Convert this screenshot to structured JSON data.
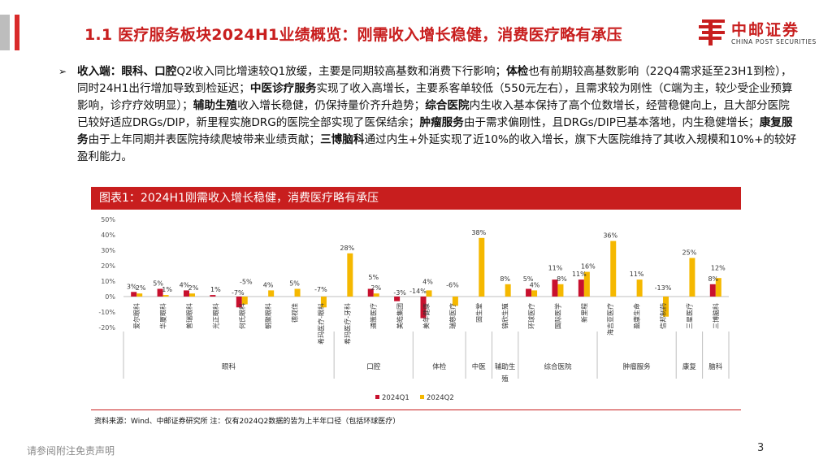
{
  "header": {
    "title": "1.1 医疗服务板块2024H1业绩概览：刚需收入增长稳健，消费医疗略有承压",
    "logo_cn": "中邮证券",
    "logo_en": "CHINA POST SECURITIES"
  },
  "body": {
    "bullet": "➢",
    "segments": [
      {
        "bold": true,
        "text": "收入端："
      },
      {
        "bold": true,
        "text": "眼科、口腔"
      },
      {
        "bold": false,
        "text": "Q2收入同比增速较Q1放缓，主要是同期较高基数和消费下行影响；"
      },
      {
        "bold": true,
        "text": "体检"
      },
      {
        "bold": false,
        "text": "也有前期较高基数影响（22Q4需求延至23H1到检），同时24H1出行增加导致到检延迟；"
      },
      {
        "bold": true,
        "text": "中医诊疗服务"
      },
      {
        "bold": false,
        "text": "实现了收入高增长，主要系客单较低（550元左右），且需求较为刚性（C端为主，较少受企业预算影响，诊疗疗效明显）；"
      },
      {
        "bold": true,
        "text": "辅助生殖"
      },
      {
        "bold": false,
        "text": "收入增长稳健，仍保持量价齐升趋势；"
      },
      {
        "bold": true,
        "text": "综合医院"
      },
      {
        "bold": false,
        "text": "内生收入基本保持了高个位数增长，经营稳健向上，且大部分医院已较好适应DRGs/DIP，新里程实施DRG的医院全部实现了医保结余；"
      },
      {
        "bold": true,
        "text": "肿瘤服务"
      },
      {
        "bold": false,
        "text": "由于需求偏刚性，且DRGs/DIP已基本落地，内生稳健增长；"
      },
      {
        "bold": true,
        "text": "康复服务"
      },
      {
        "bold": false,
        "text": "由于上年同期并表医院持续爬坡带来业绩贡献；"
      },
      {
        "bold": true,
        "text": "三博脑科"
      },
      {
        "bold": false,
        "text": "通过内生+外延实现了近10%的收入增长，旗下大医院维持了其收入规模和10%+的较好盈利能力。"
      }
    ]
  },
  "chart_header": "图表1：2024H1刚需收入增长稳健，消费医疗略有承压",
  "chart_data": {
    "type": "bar",
    "ylim": [
      -20,
      50
    ],
    "yticks": [
      "50%",
      "40%",
      "30%",
      "20%",
      "10%",
      "0%",
      "-10%",
      "-20%"
    ],
    "ytick_values": [
      50,
      40,
      30,
      20,
      10,
      0,
      -10,
      -20
    ],
    "categories": [
      "爱尔眼科",
      "华厦眼科",
      "普瑞眼科",
      "光正眼科",
      "何氏眼科",
      "朝聚眼科",
      "德视佳",
      "希玛医疗-眼科",
      "希玛医疗-牙科",
      "通策医疗",
      "美皓集团",
      "美年健康",
      "瑞慈医疗",
      "固生堂",
      "锦欣生殖",
      "环球医疗",
      "国际医学",
      "新里程",
      "海吉亚医疗",
      "盈康生命",
      "信邦制药",
      "三星医疗",
      "三博脑科"
    ],
    "series": [
      {
        "name": "2024Q1",
        "color": "#c8102e",
        "values": [
          3,
          5,
          4,
          1,
          -7,
          null,
          null,
          null,
          null,
          5,
          -3,
          -14,
          null,
          null,
          null,
          5,
          11,
          11,
          null,
          null,
          null,
          null,
          8
        ]
      },
      {
        "name": "2024Q2",
        "color": "#f5b800",
        "values": [
          2,
          1,
          2,
          null,
          -5,
          4,
          5,
          -7,
          28,
          2,
          null,
          4,
          -6,
          38,
          8,
          4,
          8,
          16,
          36,
          11,
          -13,
          25,
          12
        ]
      }
    ],
    "labels": [
      {
        "cat": 0,
        "text": "3%",
        "y": 3,
        "dx": -6
      },
      {
        "cat": 0,
        "text": "2%",
        "y": 2,
        "dx": 5
      },
      {
        "cat": 1,
        "text": "5%",
        "y": 5,
        "dx": -6
      },
      {
        "cat": 1,
        "text": "1%",
        "y": 1,
        "dx": 5
      },
      {
        "cat": 2,
        "text": "4%",
        "y": 4,
        "dx": -6
      },
      {
        "cat": 2,
        "text": "2%",
        "y": 2,
        "dx": 5
      },
      {
        "cat": 3,
        "text": "1%",
        "y": 1,
        "dx": 0
      },
      {
        "cat": 4,
        "text": "-5%",
        "y": 6,
        "dx": 5
      },
      {
        "cat": 4,
        "text": "-7%",
        "y": -1,
        "dx": -5
      },
      {
        "cat": 5,
        "text": "4%",
        "y": 4,
        "dx": 0
      },
      {
        "cat": 6,
        "text": "5%",
        "y": 5,
        "dx": 0
      },
      {
        "cat": 7,
        "text": "-7%",
        "y": 1,
        "dx": 0
      },
      {
        "cat": 8,
        "text": "28%",
        "y": 28,
        "dx": 0
      },
      {
        "cat": 9,
        "text": "5%",
        "y": 9,
        "dx": 0
      },
      {
        "cat": 9,
        "text": "2%",
        "y": 2,
        "dx": 3
      },
      {
        "cat": 10,
        "text": "-3%",
        "y": -1,
        "dx": 0
      },
      {
        "cat": 11,
        "text": "4%",
        "y": 6,
        "dx": 2
      },
      {
        "cat": 11,
        "text": "-14%",
        "y": 0,
        "dx": -10
      },
      {
        "cat": 12,
        "text": "-6%",
        "y": 4,
        "dx": 0
      },
      {
        "cat": 13,
        "text": "38%",
        "y": 38,
        "dx": 0
      },
      {
        "cat": 14,
        "text": "8%",
        "y": 8,
        "dx": 0
      },
      {
        "cat": 15,
        "text": "5%",
        "y": 8,
        "dx": -4
      },
      {
        "cat": 15,
        "text": "4%",
        "y": 4,
        "dx": 4
      },
      {
        "cat": 16,
        "text": "11%",
        "y": 15,
        "dx": -3
      },
      {
        "cat": 16,
        "text": "8%",
        "y": 8,
        "dx": 5
      },
      {
        "cat": 17,
        "text": "16%",
        "y": 16,
        "dx": 5
      },
      {
        "cat": 17,
        "text": "11%",
        "y": 11,
        "dx": -6
      },
      {
        "cat": 18,
        "text": "36%",
        "y": 36,
        "dx": 0
      },
      {
        "cat": 19,
        "text": "11%",
        "y": 11,
        "dx": 0
      },
      {
        "cat": 20,
        "text": "-13%",
        "y": 2,
        "dx": 0
      },
      {
        "cat": 21,
        "text": "25%",
        "y": 25,
        "dx": 0
      },
      {
        "cat": 22,
        "text": "12%",
        "y": 15,
        "dx": 3
      },
      {
        "cat": 22,
        "text": "8%",
        "y": 8,
        "dx": -3
      }
    ],
    "groups": [
      {
        "name": "眼科",
        "from": 0,
        "to": 7
      },
      {
        "name": "口腔",
        "from": 8,
        "to": 10
      },
      {
        "name": "体检",
        "from": 11,
        "to": 12
      },
      {
        "name": "中医",
        "from": 13,
        "to": 13
      },
      {
        "name": "辅助生殖",
        "from": 14,
        "to": 14
      },
      {
        "name": "综合医院",
        "from": 15,
        "to": 17
      },
      {
        "name": "肿瘤服务",
        "from": 18,
        "to": 20
      },
      {
        "name": "康复",
        "from": 21,
        "to": 21
      },
      {
        "name": "脑科",
        "from": 22,
        "to": 22
      }
    ],
    "legend": [
      "2024Q1",
      "2024Q2"
    ],
    "legend_position": "bottom",
    "grid": false
  },
  "source": "资料来源：Wind、中邮证券研究所  注：仅有2024Q2数据的皆为上半年口径（包括环球医疗）",
  "footer": {
    "disclaimer": "请参阅附注免责声明",
    "page": "3"
  }
}
